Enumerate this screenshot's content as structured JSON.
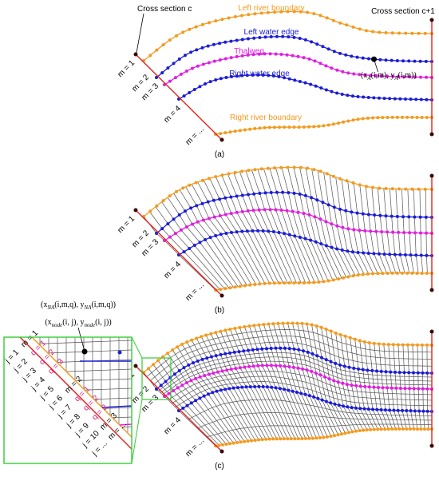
{
  "panels": [
    {
      "label": "(a)",
      "cross_section_left": "Cross section c",
      "cross_section_right": "Cross section c+1",
      "curves": [
        "Left river boundary",
        "Left water edge",
        "Thalweg",
        "Right water edge",
        "Right river boundary"
      ],
      "m_labels": [
        "m = 1",
        "m = 2",
        "m = 3",
        "m = 4",
        "m = ..."
      ],
      "point_label": [
        "(x",
        "A",
        "(i,m), y",
        "A",
        "(i,m))"
      ]
    },
    {
      "label": "(b)",
      "m_labels": [
        "m = 1",
        "m = 2",
        "m = 3",
        "m = 4",
        "m = ..."
      ]
    },
    {
      "label": "(c)",
      "m_labels": [
        "m = 1",
        "m = 2",
        "m = 3",
        "m = 4",
        "m = ..."
      ],
      "point_labels": [
        [
          "(x",
          "NA",
          "(i,m,q), y",
          "NA",
          "(i,m,q))"
        ],
        [
          "(x",
          "node",
          "(i, j), y",
          "node",
          "(i, j))"
        ]
      ],
      "inset": {
        "j_labels": [
          "j = 1",
          "j = 2",
          "j = 3",
          "j = 4",
          "j = 5",
          "j = 6",
          "j = 7",
          "j = 8",
          "j = 9",
          "j = 10",
          "j = ..."
        ],
        "mq_labels": [
          "m = 1",
          "q = 1",
          "q = 2",
          "q = 3",
          "",
          "m = 2",
          "q = 1",
          "q = 2",
          "q = 3",
          "m = 3",
          "m = ..."
        ]
      }
    }
  ]
}
